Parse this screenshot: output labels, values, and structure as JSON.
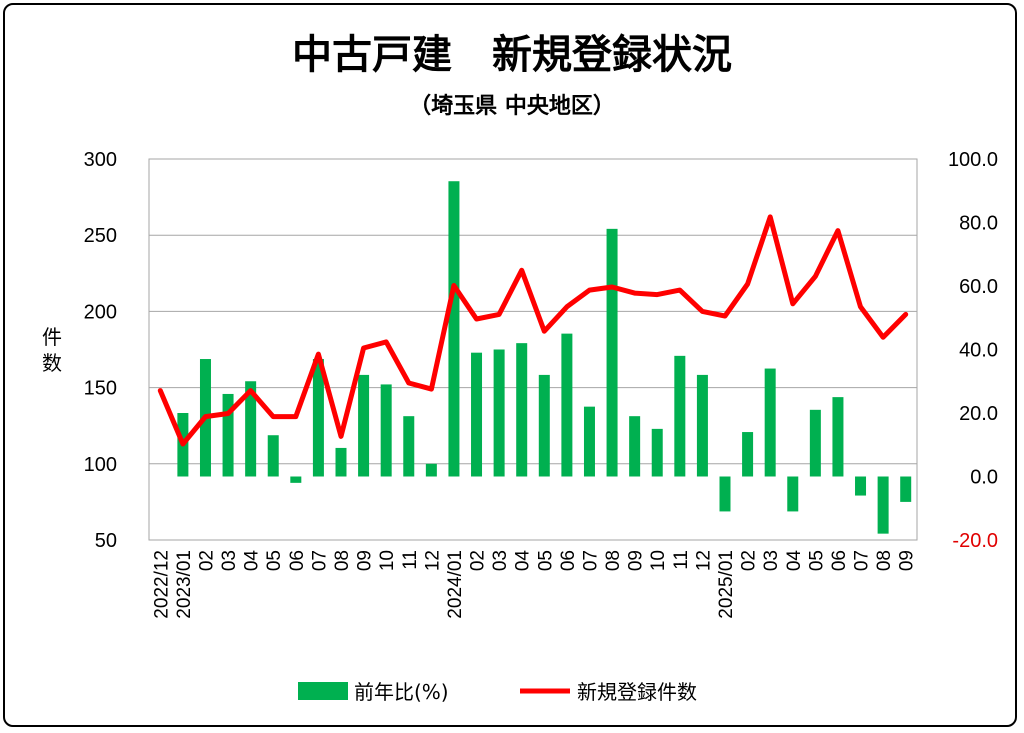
{
  "chart_data": {
    "type": "bar",
    "title": "中古戸建　新規登録状況",
    "subtitle": "（埼玉県 中央地区）",
    "ylabel_left": "件数",
    "ylim_left": [
      50,
      300
    ],
    "yticks_left": [
      "300",
      "250",
      "200",
      "150",
      "100",
      "50"
    ],
    "ylim_right": [
      -20,
      100
    ],
    "yticks_right": [
      "100.0",
      "80.0",
      "60.0",
      "40.0",
      "20.0",
      "0.0",
      "-20.0"
    ],
    "grid": true,
    "legend_position": "bottom",
    "categories": [
      "2022/12",
      "2023/01",
      "02",
      "03",
      "04",
      "05",
      "06",
      "07",
      "08",
      "09",
      "10",
      "11",
      "12",
      "2024/01",
      "02",
      "03",
      "04",
      "05",
      "06",
      "07",
      "08",
      "09",
      "10",
      "11",
      "12",
      "2025/01",
      "02",
      "03",
      "04",
      "05",
      "06",
      "07",
      "08",
      "09"
    ],
    "series": [
      {
        "name": "前年比(%)",
        "type": "bar",
        "axis": "right",
        "color": "#00b050",
        "values": [
          null,
          20,
          37,
          26,
          30,
          13,
          -2,
          37,
          9,
          32,
          29,
          19,
          4,
          93,
          39,
          40,
          42,
          32,
          45,
          22,
          78,
          19,
          15,
          38,
          32,
          -11,
          14,
          34,
          -11,
          21,
          25,
          -6,
          -18,
          -8
        ]
      },
      {
        "name": "新規登録件数",
        "type": "line",
        "axis": "left",
        "color": "#ff0000",
        "values": [
          148,
          113,
          131,
          133,
          148,
          131,
          131,
          172,
          118,
          176,
          180,
          153,
          149,
          217,
          195,
          198,
          227,
          187,
          203,
          214,
          216,
          212,
          211,
          214,
          200,
          197,
          218,
          262,
          205,
          223,
          253,
          203,
          183,
          198
        ]
      }
    ]
  }
}
